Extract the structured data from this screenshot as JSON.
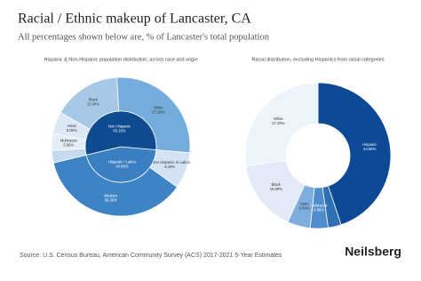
{
  "title": "Racial / Ethnic makeup of Lancaster, CA",
  "subtitle": "All percentages shown below are, % of Lancaster's total population",
  "source": "Source: U.S. Census Bureau, American Community Survey (ACS) 2017-2021 5-Year Estimates",
  "brand": "Neilsberg",
  "chart_data": [
    {
      "type": "nested_donut",
      "title": "Hispanic & Non-Hispanic population distribution, across race and origin",
      "inner": {
        "categories": [
          "Hispanic / Latino",
          "Non Hispanic"
        ],
        "values": [
          44.85,
          55.15
        ],
        "value_labels": [
          "44.85%",
          "55.15%"
        ],
        "colors": [
          "#3a7fc1",
          "#0e4c8f"
        ]
      },
      "outer": {
        "categories": [
          "Other Hispanic or Latino",
          "Mestizo",
          null,
          "Multiracial",
          "Asian",
          "Black",
          "White"
        ],
        "values": [
          8.49,
          36.36,
          2.91,
          3.96,
          5.09,
          15.9,
          27.29
        ],
        "value_labels": [
          "8.49%",
          "36.36%",
          null,
          "3.96%",
          "5.09%",
          "15.90%",
          "27.29%"
        ],
        "colors": [
          "#d3e3f4",
          "#3d84c5",
          "#c5d9ef",
          "#e4eef8",
          "#dbe8f5",
          "#a8c8e8",
          "#74acdc"
        ]
      }
    },
    {
      "type": "donut",
      "title": "Racial distribution, excluding Hispanics from racial categories",
      "categories": [
        "Hispanic",
        null,
        "Multiracial",
        "Asian",
        "Black",
        "White"
      ],
      "values": [
        44.85,
        2.91,
        3.96,
        5.09,
        15.9,
        27.29
      ],
      "value_labels": [
        "44.85%",
        null,
        "3.96%",
        "5.09%",
        "15.90%",
        "27.29%"
      ],
      "colors": [
        "#0d4a96",
        "#2f6fb3",
        "#4f8ccb",
        "#7eaedd",
        "#e1eaf6",
        "#eef4fb"
      ]
    }
  ]
}
